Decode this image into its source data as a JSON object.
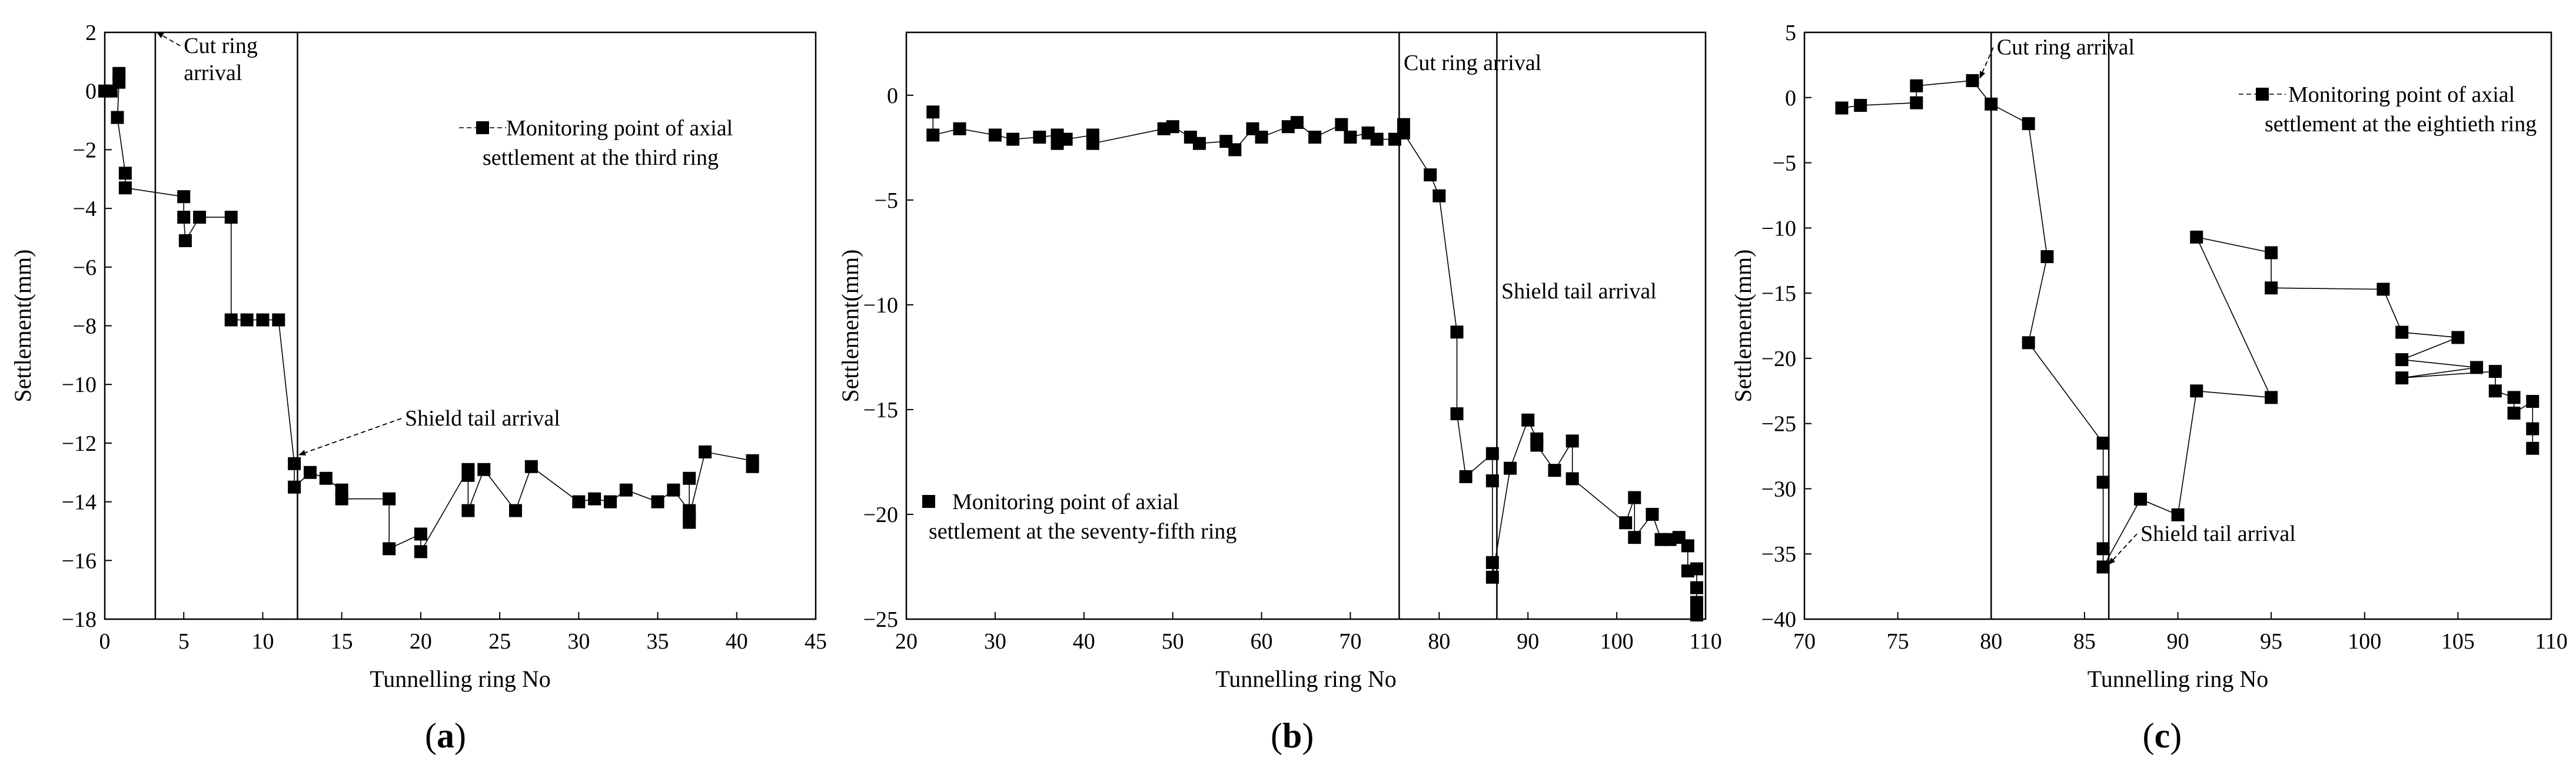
{
  "figure_title": "",
  "chart_data": [
    {
      "type": "scatter",
      "panel": "a",
      "panel_label": "(a)",
      "xlabel": "Tunnelling ring No",
      "ylabel": "Settlement(mm)",
      "xlim": [
        0,
        45
      ],
      "ylim": [
        -18,
        2
      ],
      "xticks": [
        0,
        5,
        10,
        15,
        20,
        25,
        30,
        35,
        40,
        45
      ],
      "yticks": [
        -18,
        -16,
        -14,
        -12,
        -10,
        -8,
        -6,
        -4,
        -2,
        0,
        2
      ],
      "vlines": [
        3.2,
        12.2
      ],
      "series": [
        {
          "name": "Monitoring point of axial settlement at the third ring",
          "connected": true,
          "x": [
            0,
            0.4,
            0.9,
            0.9,
            0.8,
            1.3,
            1.3,
            5,
            5,
            5.1,
            6,
            8,
            8,
            9,
            10,
            11,
            12,
            12,
            13,
            14,
            15,
            15,
            18,
            18,
            20,
            20,
            23,
            23,
            23,
            24,
            26,
            27,
            30,
            31,
            32,
            33,
            35,
            36,
            37,
            37,
            37,
            37,
            38,
            41,
            41
          ],
          "y": [
            0,
            0,
            0.6,
            0.3,
            -0.9,
            -2.8,
            -3.3,
            -3.6,
            -4.3,
            -5.1,
            -4.3,
            -4.3,
            -7.8,
            -7.8,
            -7.8,
            -7.8,
            -12.7,
            -13.5,
            -13,
            -13.2,
            -13.6,
            -13.9,
            -13.9,
            -15.6,
            -15.1,
            -15.7,
            -12.9,
            -13.1,
            -14.3,
            -12.9,
            -14.3,
            -12.8,
            -14,
            -13.9,
            -14,
            -13.6,
            -14,
            -13.6,
            -14.3,
            -14.7,
            -13.2,
            -14.5,
            -12.3,
            -12.6,
            -12.8
          ]
        }
      ],
      "annotations": [
        {
          "text_lines": [
            "Cut ring",
            "arrival"
          ],
          "x": 5,
          "y": 1.3,
          "arrow_to_x": 3.3,
          "arrow_to_y": 2
        },
        {
          "text_lines": [
            "Shield tail arrival"
          ],
          "x": 19,
          "y": -11.4,
          "arrow_to_x": 12.3,
          "arrow_to_y": -12.4
        }
      ],
      "legend": {
        "lines": [
          "Monitoring point of axial",
          "settlement at the third ring"
        ],
        "placement": "top-right"
      }
    },
    {
      "type": "scatter",
      "panel": "b",
      "panel_label": "(b)",
      "xlabel": "Tunnelling ring No",
      "ylabel": "Settlement(mm)",
      "xlim": [
        20,
        110
      ],
      "ylim": [
        -25,
        3
      ],
      "xticks": [
        20,
        30,
        40,
        50,
        60,
        70,
        80,
        90,
        100,
        110
      ],
      "yticks": [
        -25,
        -20,
        -15,
        -10,
        -5,
        0
      ],
      "vlines": [
        75.5,
        86.5
      ],
      "series": [
        {
          "name": "Monitoring point of axial settlement at the seventy-fifth ring",
          "connected": true,
          "x": [
            23,
            23,
            26,
            30,
            32,
            35,
            37,
            37,
            38,
            41,
            41,
            49,
            50,
            52,
            53,
            56,
            57,
            59,
            60,
            63,
            64,
            66,
            69,
            70,
            72,
            73,
            75,
            76,
            76,
            79,
            80,
            82,
            82,
            83,
            86,
            86,
            86,
            86,
            88,
            90,
            91,
            91,
            93,
            95,
            95,
            101,
            102,
            102,
            104,
            105,
            106,
            107,
            108,
            108,
            109,
            109,
            109,
            109
          ],
          "y": [
            -0.8,
            -1.9,
            -1.6,
            -1.9,
            -2.1,
            -2,
            -1.9,
            -2.3,
            -2.1,
            -1.9,
            -2.3,
            -1.6,
            -1.5,
            -2,
            -2.3,
            -2.2,
            -2.6,
            -1.6,
            -2,
            -1.5,
            -1.3,
            -2,
            -1.4,
            -2,
            -1.8,
            -2.1,
            -2.1,
            -1.4,
            -1.8,
            -3.8,
            -4.8,
            -11.3,
            -15.2,
            -18.2,
            -17.1,
            -18.4,
            -22.3,
            -23,
            -17.8,
            -15.5,
            -16.4,
            -16.7,
            -17.9,
            -16.5,
            -18.3,
            -20.4,
            -19.2,
            -21.1,
            -20,
            -21.2,
            -21.2,
            -21.1,
            -21.5,
            -22.7,
            -22.6,
            -23.5,
            -24.2,
            -24.8
          ]
        }
      ],
      "annotations": [
        {
          "text_lines": [
            "Cut ring arrival"
          ],
          "x": 76,
          "y": 1.2
        },
        {
          "text_lines": [
            "Shield tail arrival"
          ],
          "x": 87,
          "y": -9.7
        }
      ],
      "legend": {
        "lines": [
          "Monitoring point of axial",
          "settlement at the seventy-fifth ring"
        ],
        "placement": "bottom-left"
      }
    },
    {
      "type": "scatter",
      "panel": "c",
      "panel_label": "(c)",
      "xlabel": "Tunnelling ring No",
      "ylabel": "Settlement(mm)",
      "xlim": [
        70,
        110
      ],
      "ylim": [
        -40,
        5
      ],
      "xticks": [
        70,
        75,
        80,
        85,
        90,
        95,
        100,
        105,
        110
      ],
      "yticks": [
        -40,
        -35,
        -30,
        -25,
        -20,
        -15,
        -10,
        -5,
        0,
        5
      ],
      "vlines": [
        80,
        86.3
      ],
      "series": [
        {
          "name": "Monitoring point of axial settlement at the eightieth ring",
          "connected": true,
          "x": [
            72,
            73,
            76,
            76,
            79,
            80,
            82,
            83,
            82,
            86,
            86,
            86,
            86,
            88,
            90,
            91,
            95,
            91,
            95,
            95,
            101,
            102,
            105,
            102,
            106,
            102,
            107,
            107,
            108,
            108,
            109,
            109,
            109
          ],
          "y": [
            -0.8,
            -0.6,
            -0.4,
            0.9,
            1.3,
            -0.5,
            -2,
            -12.2,
            -18.8,
            -26.5,
            -29.5,
            -34.6,
            -36,
            -30.8,
            -32,
            -22.5,
            -23,
            -10.7,
            -11.9,
            -14.6,
            -14.7,
            -18,
            -18.4,
            -20.1,
            -20.7,
            -21.5,
            -21,
            -22.5,
            -23,
            -24.2,
            -23.3,
            -25.4,
            -26.9
          ]
        }
      ],
      "annotations": [
        {
          "text_lines": [
            "Cut ring arrival"
          ],
          "x": 80.3,
          "y": 3.3,
          "arrow_to_x": 79.4,
          "arrow_to_y": 1.5
        },
        {
          "text_lines": [
            "Shield tail arrival"
          ],
          "x": 88,
          "y": -34,
          "arrow_to_x": 86.3,
          "arrow_to_y": -35.8
        }
      ],
      "legend": {
        "lines": [
          "Monitoring point of axial",
          "settlement at the eightieth ring"
        ],
        "placement": "top-right"
      }
    }
  ]
}
